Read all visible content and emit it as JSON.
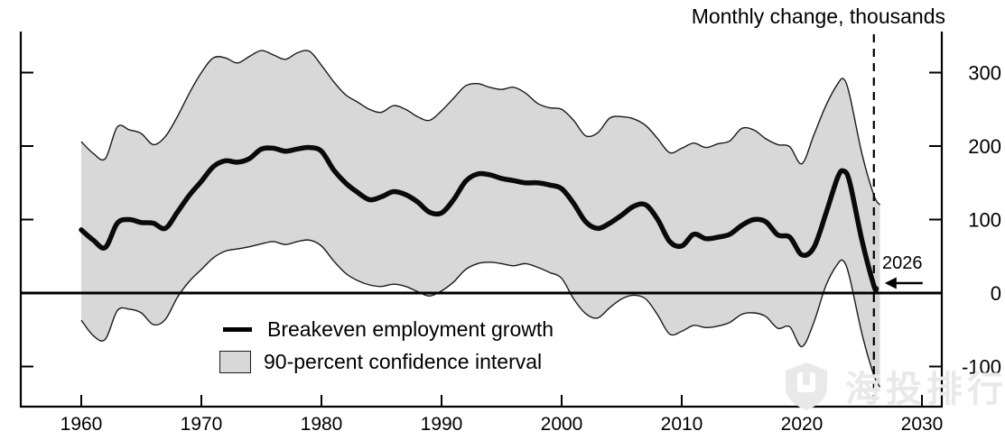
{
  "style": {
    "background": "#ffffff",
    "line_color": "#0a0a0a",
    "band_fill": "#d8d8d8",
    "band_edge": "#1a1a1a",
    "axis_color": "#000000",
    "watermark_color": "#e9e9e9"
  },
  "watermark": {
    "text": "海投排行",
    "icon": "shield"
  },
  "chart_data": {
    "type": "line",
    "title": "Monthly change, thousands",
    "xlabel": "",
    "ylabel": "Monthly change, thousands",
    "grid": false,
    "legend_position": "inside-lower-left",
    "legend": [
      "Breakeven employment growth",
      "90-percent confidence interval"
    ],
    "annotation": {
      "label": "2026",
      "arrow": "left",
      "target_year": 2026
    },
    "xlim": [
      1955,
      2031.7
    ],
    "ylim": [
      -155,
      355
    ],
    "x_ticks": [
      1960,
      1970,
      1980,
      1990,
      2000,
      2010,
      2020,
      2030
    ],
    "y_ticks": [
      300,
      200,
      100,
      0,
      -100
    ],
    "zero_reference_line": 0,
    "dashed_vertical_line_x": 2026,
    "series": [
      {
        "name": "Breakeven employment growth",
        "style": "thick-line",
        "x": [
          1960,
          1961,
          1962,
          1963,
          1964,
          1965,
          1966,
          1967,
          1968,
          1969,
          1970,
          1971,
          1972,
          1973,
          1974,
          1975,
          1976,
          1977,
          1978,
          1979,
          1980,
          1981,
          1982,
          1983,
          1984,
          1985,
          1986,
          1987,
          1988,
          1989,
          1990,
          1991,
          1992,
          1993,
          1994,
          1995,
          1996,
          1997,
          1998,
          1999,
          2000,
          2001,
          2002,
          2003,
          2004,
          2005,
          2006,
          2007,
          2008,
          2009,
          2010,
          2011,
          2012,
          2013,
          2014,
          2015,
          2016,
          2017,
          2018,
          2019,
          2020,
          2021,
          2022,
          2023,
          2023.5,
          2024,
          2025,
          2026,
          2026.2
        ],
        "values": [
          86,
          72,
          62,
          95,
          100,
          96,
          95,
          88,
          110,
          133,
          152,
          172,
          180,
          178,
          183,
          196,
          197,
          193,
          196,
          198,
          193,
          168,
          150,
          137,
          127,
          131,
          138,
          134,
          124,
          110,
          109,
          127,
          152,
          162,
          161,
          156,
          153,
          150,
          150,
          147,
          142,
          122,
          97,
          88,
          95,
          106,
          118,
          120,
          100,
          70,
          64,
          80,
          74,
          76,
          80,
          92,
          100,
          97,
          79,
          76,
          52,
          62,
          108,
          158,
          166,
          150,
          72,
          10,
          6
        ]
      },
      {
        "name": "90-percent confidence interval upper bound",
        "style": "band-upper-edge",
        "x": [
          1960,
          1961,
          1962,
          1963,
          1964,
          1965,
          1966,
          1967,
          1968,
          1969,
          1970,
          1971,
          1972,
          1973,
          1974,
          1975,
          1976,
          1977,
          1978,
          1979,
          1980,
          1981,
          1982,
          1983,
          1984,
          1985,
          1986,
          1987,
          1988,
          1989,
          1990,
          1991,
          1992,
          1993,
          1994,
          1995,
          1996,
          1997,
          1998,
          1999,
          2000,
          2001,
          2002,
          2003,
          2004,
          2005,
          2006,
          2007,
          2008,
          2009,
          2010,
          2011,
          2012,
          2013,
          2014,
          2015,
          2016,
          2017,
          2018,
          2019,
          2020,
          2021,
          2022,
          2023,
          2023.5,
          2024,
          2025,
          2026,
          2026.5
        ],
        "values": [
          206,
          190,
          183,
          226,
          222,
          217,
          202,
          213,
          240,
          272,
          300,
          320,
          320,
          313,
          322,
          330,
          324,
          318,
          327,
          329,
          310,
          288,
          270,
          260,
          250,
          246,
          255,
          250,
          240,
          235,
          248,
          265,
          282,
          285,
          280,
          277,
          280,
          272,
          258,
          252,
          250,
          235,
          214,
          218,
          238,
          240,
          237,
          228,
          210,
          191,
          197,
          204,
          198,
          203,
          207,
          224,
          222,
          210,
          202,
          199,
          176,
          215,
          255,
          285,
          291,
          268,
          190,
          133,
          120
        ]
      },
      {
        "name": "90-percent confidence interval lower bound",
        "style": "band-lower-edge",
        "x": [
          1960,
          1961,
          1962,
          1963,
          1964,
          1965,
          1966,
          1967,
          1968,
          1969,
          1970,
          1971,
          1972,
          1973,
          1974,
          1975,
          1976,
          1977,
          1978,
          1979,
          1980,
          1981,
          1982,
          1983,
          1984,
          1985,
          1986,
          1987,
          1988,
          1989,
          1990,
          1991,
          1992,
          1993,
          1994,
          1995,
          1996,
          1997,
          1998,
          1999,
          2000,
          2001,
          2002,
          2003,
          2004,
          2005,
          2006,
          2007,
          2008,
          2009,
          2010,
          2011,
          2012,
          2013,
          2014,
          2015,
          2016,
          2017,
          2018,
          2019,
          2020,
          2021,
          2022,
          2023,
          2023.5,
          2024,
          2025,
          2026,
          2026.5
        ],
        "values": [
          -37,
          -58,
          -63,
          -24,
          -22,
          -27,
          -43,
          -36,
          -6,
          16,
          32,
          48,
          57,
          60,
          63,
          67,
          70,
          66,
          70,
          72,
          64,
          44,
          27,
          17,
          11,
          9,
          12,
          9,
          2,
          -4,
          3,
          15,
          32,
          40,
          42,
          40,
          37,
          40,
          35,
          28,
          20,
          -8,
          -28,
          -34,
          -20,
          -8,
          -3,
          -8,
          -30,
          -56,
          -52,
          -44,
          -47,
          -45,
          -40,
          -29,
          -27,
          -32,
          -48,
          -46,
          -73,
          -40,
          10,
          40,
          43,
          20,
          -55,
          -112,
          -128
        ]
      }
    ]
  }
}
